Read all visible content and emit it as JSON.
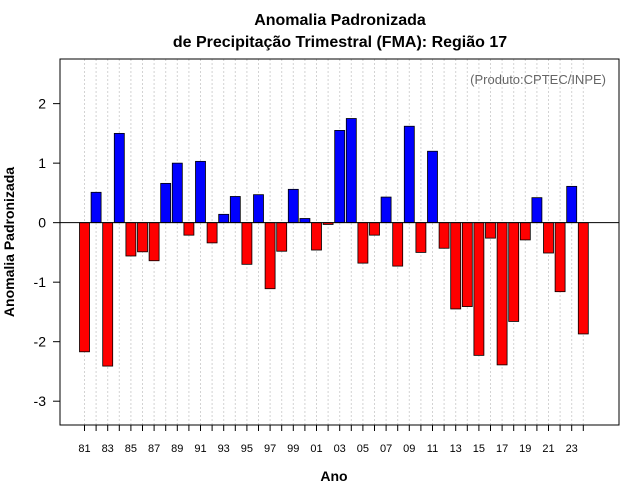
{
  "chart_data": {
    "type": "bar",
    "title": "Anomalia Padronizada",
    "subtitle": "de Precipitação Trimestral (FMA): Região 17",
    "xlabel": "Ano",
    "ylabel": "Anomalia Padronizada",
    "annotation": "(Produto:CPTEC/INPE)",
    "ylim": [
      -3.4,
      2.75
    ],
    "yticks": [
      -3,
      -2,
      -1,
      0,
      1,
      2
    ],
    "ytick_labels": [
      "-3",
      "-2",
      "-1",
      "0",
      "1",
      "2"
    ],
    "categories": [
      "81",
      "82",
      "83",
      "84",
      "85",
      "86",
      "87",
      "88",
      "89",
      "90",
      "91",
      "92",
      "93",
      "94",
      "95",
      "96",
      "97",
      "98",
      "99",
      "00",
      "01",
      "02",
      "03",
      "04",
      "05",
      "06",
      "07",
      "08",
      "09",
      "10",
      "11",
      "12",
      "13",
      "14",
      "15",
      "16",
      "17",
      "18",
      "19",
      "20",
      "21",
      "22",
      "23",
      "24"
    ],
    "xtick_labels": [
      "81",
      "83",
      "85",
      "87",
      "89",
      "91",
      "93",
      "95",
      "97",
      "99",
      "01",
      "03",
      "05",
      "07",
      "09",
      "11",
      "13",
      "15",
      "17",
      "19",
      "21",
      "23"
    ],
    "values": [
      -2.17,
      0.51,
      -2.41,
      1.5,
      -0.56,
      -0.49,
      -0.64,
      0.66,
      1.0,
      -0.21,
      1.03,
      -0.34,
      0.14,
      0.44,
      -0.7,
      0.47,
      -1.11,
      -0.48,
      0.56,
      0.07,
      -0.46,
      -0.03,
      1.55,
      1.75,
      -0.68,
      -0.21,
      0.43,
      -0.73,
      1.62,
      -0.5,
      1.2,
      -0.43,
      -1.45,
      -1.41,
      -2.23,
      -0.26,
      -2.39,
      -1.66,
      -0.29,
      0.42,
      -0.51,
      -1.16,
      0.61,
      -1.87
    ],
    "grid": true,
    "colors": {
      "positive": "#0000ff",
      "negative": "#ff0000",
      "bar_edge": "#000000",
      "grid": "#d3d3d3",
      "zero_line": "#000000"
    }
  }
}
